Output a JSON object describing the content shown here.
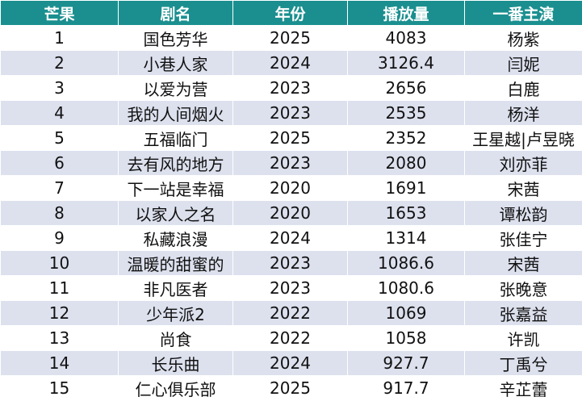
{
  "table": {
    "headers": [
      "芒果",
      "剧名",
      "年份",
      "播放量",
      "一番主演"
    ],
    "rows": [
      [
        "1",
        "国色芳华",
        "2025",
        "4083",
        "杨紫"
      ],
      [
        "2",
        "小巷人家",
        "2024",
        "3126.4",
        "闫妮"
      ],
      [
        "3",
        "以爱为营",
        "2023",
        "2656",
        "白鹿"
      ],
      [
        "4",
        "我的人间烟火",
        "2023",
        "2535",
        "杨洋"
      ],
      [
        "5",
        "五福临门",
        "2025",
        "2352",
        "王星越|卢昱晓"
      ],
      [
        "6",
        "去有风的地方",
        "2023",
        "2080",
        "刘亦菲"
      ],
      [
        "7",
        "下一站是幸福",
        "2020",
        "1691",
        "宋茜"
      ],
      [
        "8",
        "以家人之名",
        "2020",
        "1653",
        "谭松韵"
      ],
      [
        "9",
        "私藏浪漫",
        "2024",
        "1314",
        "张佳宁"
      ],
      [
        "10",
        "温暖的甜蜜的",
        "2023",
        "1086.6",
        "宋茜"
      ],
      [
        "11",
        "非凡医者",
        "2023",
        "1080.6",
        "张晚意"
      ],
      [
        "12",
        "少年派2",
        "2022",
        "1069",
        "张嘉益"
      ],
      [
        "13",
        "尚食",
        "2022",
        "1058",
        "许凯"
      ],
      [
        "14",
        "长乐曲",
        "2024",
        "927.7",
        "丁禹兮"
      ],
      [
        "15",
        "仁心俱乐部",
        "2025",
        "917.7",
        "辛芷蕾"
      ]
    ]
  },
  "colors": {
    "header_bg": "#1b8f8f",
    "header_text": "#ffffff",
    "stripe_bg": "#dde1ee"
  }
}
